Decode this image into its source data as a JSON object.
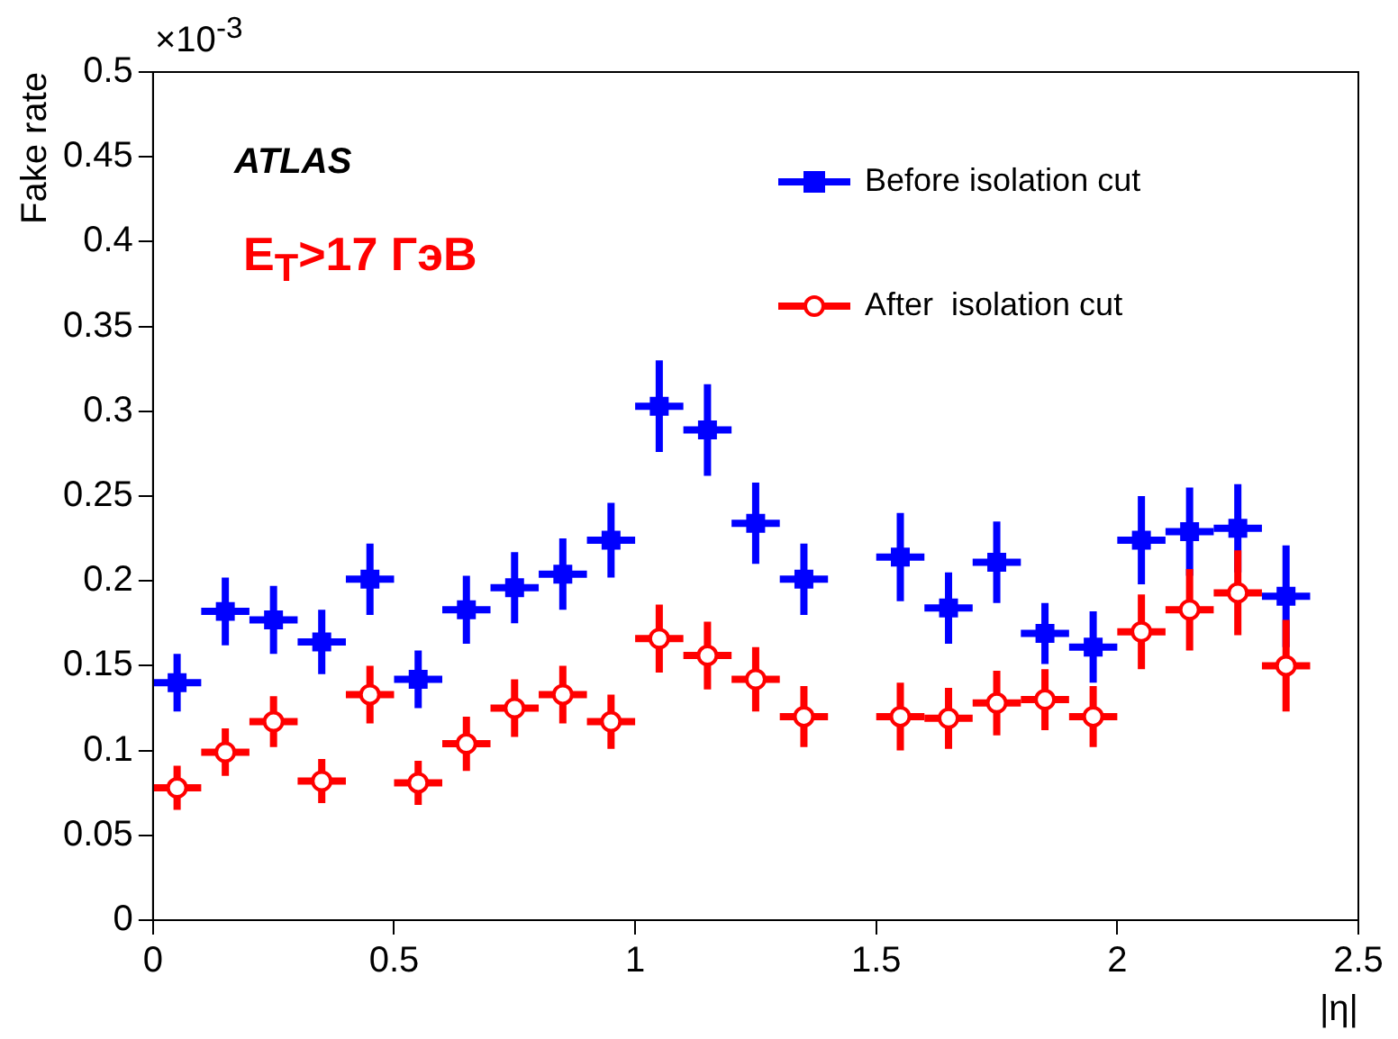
{
  "chart_data": {
    "type": "scatter",
    "xlabel": "|η|",
    "ylabel": "Fake rate",
    "annotations": [
      "×10$^{-3}$",
      "ATLAS",
      "E$_{T}$>17 ГэВ"
    ],
    "x": [
      0.05,
      0.15,
      0.25,
      0.35,
      0.45,
      0.55,
      0.65,
      0.75,
      0.85,
      0.95,
      1.05,
      1.15,
      1.25,
      1.35,
      1.45,
      1.55,
      1.65,
      1.75,
      1.85,
      1.95,
      2.05,
      2.15,
      2.25,
      2.35
    ],
    "series": [
      {
        "name": "Before isolation cut",
        "color": "#0000ff",
        "marker": "square",
        "values": [
          0.14,
          0.182,
          0.177,
          0.164,
          0.201,
          0.142,
          0.183,
          0.196,
          0.204,
          0.224,
          0.303,
          0.289,
          0.234,
          0.201,
          null,
          0.214,
          0.184,
          0.211,
          0.169,
          0.161,
          0.224,
          0.229,
          0.231,
          0.191
        ],
        "errors": [
          0.017,
          0.02,
          0.02,
          0.019,
          0.021,
          0.017,
          0.02,
          0.021,
          0.021,
          0.022,
          0.027,
          0.027,
          0.024,
          0.021,
          null,
          0.026,
          0.021,
          0.024,
          0.018,
          0.021,
          0.026,
          0.026,
          0.026,
          0.03
        ],
        "xerrors": [
          0.05,
          0.05,
          0.05,
          0.05,
          0.05,
          0.05,
          0.05,
          0.05,
          0.05,
          0.05,
          0.05,
          0.05,
          0.05,
          0.05,
          null,
          0.05,
          0.05,
          0.05,
          0.05,
          0.05,
          0.05,
          0.05,
          0.05,
          0.05
        ]
      },
      {
        "name": "After  isolation cut",
        "color": "#ff0000",
        "marker": "circle",
        "values": [
          0.078,
          0.099,
          0.117,
          0.082,
          0.133,
          0.081,
          0.104,
          0.125,
          0.133,
          0.117,
          0.166,
          0.156,
          0.142,
          0.12,
          null,
          0.12,
          0.119,
          0.128,
          0.13,
          0.12,
          0.17,
          0.183,
          0.193,
          0.15
        ],
        "errors": [
          0.013,
          0.014,
          0.015,
          0.013,
          0.017,
          0.013,
          0.016,
          0.017,
          0.017,
          0.016,
          0.02,
          0.02,
          0.019,
          0.018,
          null,
          0.02,
          0.018,
          0.019,
          0.018,
          0.018,
          0.022,
          0.024,
          0.025,
          0.027
        ],
        "xerrors": [
          0.05,
          0.05,
          0.05,
          0.05,
          0.05,
          0.05,
          0.05,
          0.05,
          0.05,
          0.05,
          0.05,
          0.05,
          0.05,
          0.05,
          null,
          0.05,
          0.05,
          0.05,
          0.05,
          0.05,
          0.05,
          0.05,
          0.05,
          0.05
        ]
      }
    ],
    "xlim": [
      0,
      2.5
    ],
    "xticks": [
      0,
      0.5,
      1,
      1.5,
      2,
      2.5
    ],
    "ylim": [
      0,
      0.5
    ],
    "yticks": [
      0,
      0.05,
      0.1,
      0.15,
      0.2,
      0.25,
      0.3,
      0.35,
      0.4,
      0.45,
      0.5
    ],
    "grid": false,
    "legend": "top right"
  }
}
